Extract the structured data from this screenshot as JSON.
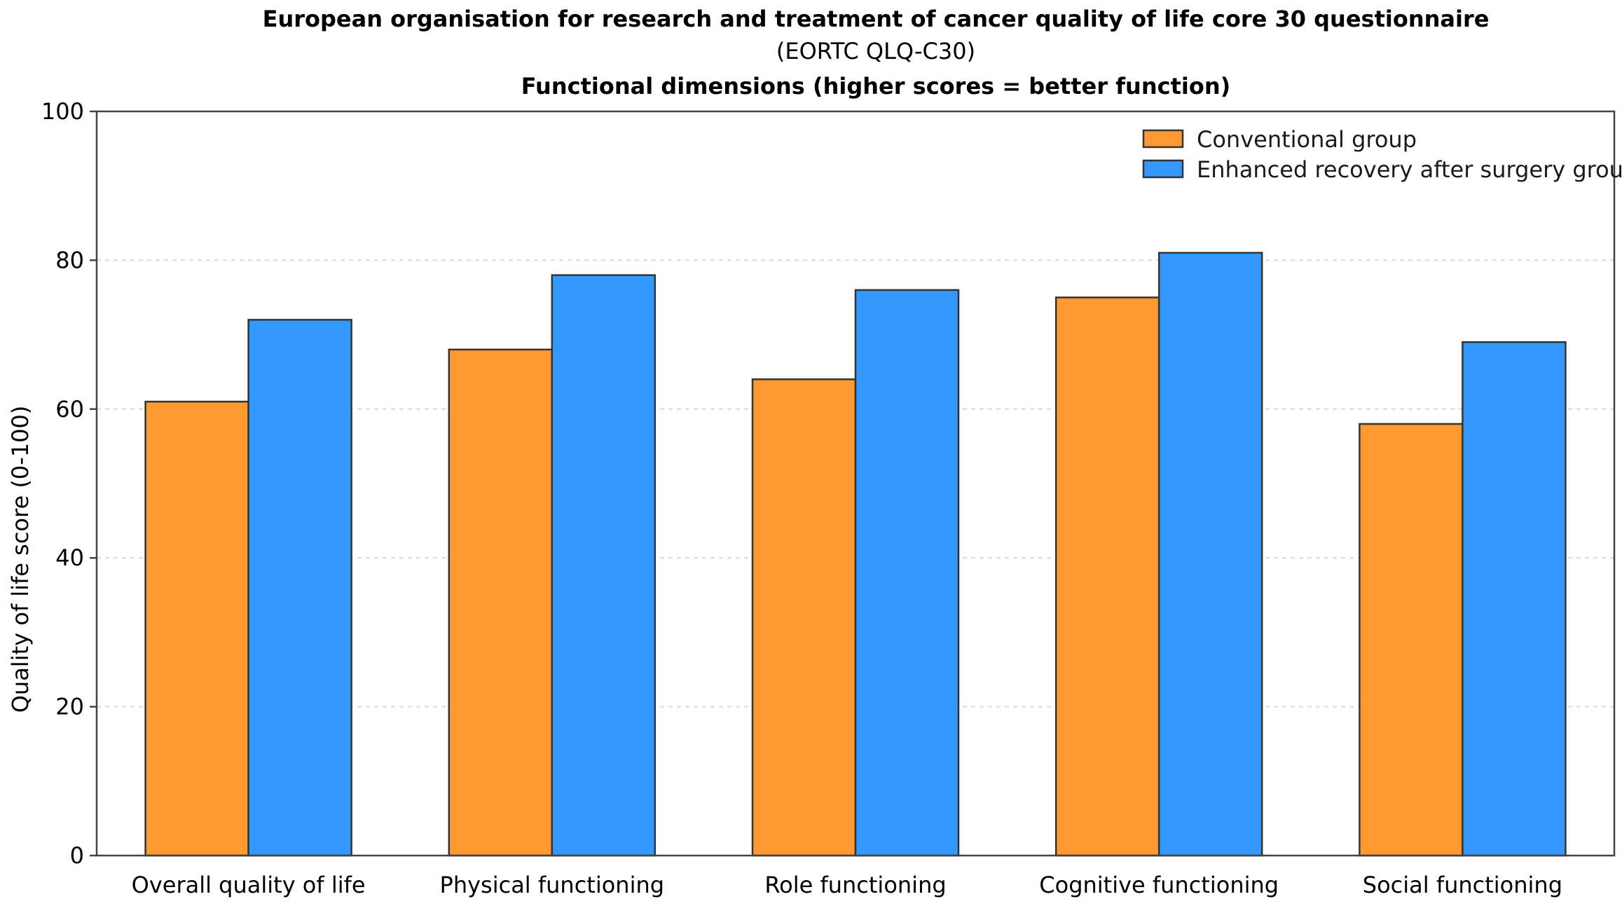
{
  "chart_data": {
    "type": "bar",
    "title": "European organisation for research and treatment of cancer quality of life core 30 questionnaire",
    "subtitle": "(EORTC QLQ-C30)",
    "subtitle2": "Functional dimensions (higher scores = better function)",
    "xlabel": "",
    "ylabel": "Quality of life score (0-100)",
    "ylim": [
      0,
      100
    ],
    "yticks": [
      0,
      20,
      40,
      60,
      80,
      100
    ],
    "grid": true,
    "legend_position": "top-right",
    "categories": [
      "Overall quality of life",
      "Physical functioning",
      "Role functioning",
      "Cognitive functioning",
      "Social functioning"
    ],
    "series": [
      {
        "name": "Conventional group",
        "color": "#FF9A33",
        "values": [
          61,
          68,
          64,
          75,
          58
        ]
      },
      {
        "name": "Enhanced recovery after surgery group",
        "color": "#3399FF",
        "values": [
          72,
          78,
          76,
          81,
          69
        ]
      }
    ]
  }
}
